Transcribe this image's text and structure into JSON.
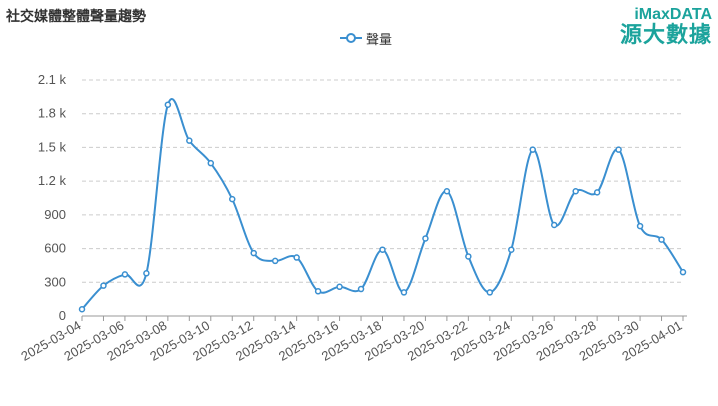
{
  "title": "社交媒體整體聲量趨勢",
  "brand": {
    "line1": "iMaxDATA",
    "line2": "源大數據"
  },
  "colors": {
    "series": "#3a8fd0",
    "grid": "#cccccc",
    "axis": "#999999"
  },
  "chart_data": {
    "type": "line",
    "smooth": true,
    "x": [
      "2025-03-04",
      "2025-03-05",
      "2025-03-06",
      "2025-03-07",
      "2025-03-08",
      "2025-03-09",
      "2025-03-10",
      "2025-03-11",
      "2025-03-12",
      "2025-03-13",
      "2025-03-14",
      "2025-03-15",
      "2025-03-16",
      "2025-03-17",
      "2025-03-18",
      "2025-03-19",
      "2025-03-20",
      "2025-03-21",
      "2025-03-22",
      "2025-03-23",
      "2025-03-24",
      "2025-03-25",
      "2025-03-26",
      "2025-03-27",
      "2025-03-28",
      "2025-03-29",
      "2025-03-30",
      "2025-03-31",
      "2025-04-01"
    ],
    "x_tick_labels": [
      "2025-03-04",
      "2025-03-06",
      "2025-03-08",
      "2025-03-10",
      "2025-03-12",
      "2025-03-14",
      "2025-03-16",
      "2025-03-18",
      "2025-03-20",
      "2025-03-22",
      "2025-03-24",
      "2025-03-26",
      "2025-03-28",
      "2025-03-30",
      "2025-04-01"
    ],
    "series": [
      {
        "name": "聲量",
        "values": [
          60,
          270,
          370,
          380,
          1880,
          1560,
          1360,
          1040,
          560,
          490,
          520,
          220,
          260,
          240,
          590,
          210,
          690,
          1110,
          530,
          210,
          590,
          1480,
          810,
          1110,
          1100,
          1480,
          800,
          680,
          390
        ]
      }
    ],
    "ylim": [
      0,
      2100
    ],
    "y_ticks": [
      0,
      300,
      600,
      900,
      1200,
      1500,
      1800,
      2100
    ],
    "y_tick_labels": [
      "0",
      "300",
      "600",
      "900",
      "1.2 k",
      "1.5 k",
      "1.8 k",
      "2.1 k"
    ],
    "legend_position": "top-center",
    "grid": true
  }
}
